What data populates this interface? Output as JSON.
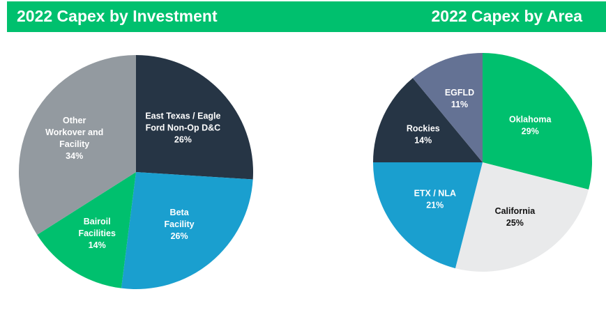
{
  "colors": {
    "green": "#00c06e",
    "navy": "#263545",
    "blue": "#1a9fcf",
    "gray": "#939aa0",
    "lightgray": "#e9eaeb",
    "slate": "#647294",
    "white": "#ffffff",
    "black": "#111111"
  },
  "chart_data": [
    {
      "type": "pie",
      "title": "2022 Capex by Investment",
      "slices": [
        {
          "label": [
            "East Texas / Eagle",
            "Ford Non-Op D&C"
          ],
          "value": 26,
          "pct_label": "26%",
          "color": "#263545",
          "text_color": "#ffffff"
        },
        {
          "label": [
            "Beta",
            "Facility"
          ],
          "value": 26,
          "pct_label": "26%",
          "color": "#1a9fcf",
          "text_color": "#ffffff"
        },
        {
          "label": [
            "Bairoil",
            "Facilities"
          ],
          "value": 14,
          "pct_label": "14%",
          "color": "#00c06e",
          "text_color": "#ffffff"
        },
        {
          "label": [
            "Other",
            "Workover and",
            "Facility"
          ],
          "value": 34,
          "pct_label": "34%",
          "color": "#939aa0",
          "text_color": "#ffffff"
        }
      ]
    },
    {
      "type": "pie",
      "title": "2022 Capex by Area",
      "slices": [
        {
          "label": [
            "Oklahoma"
          ],
          "value": 29,
          "pct_label": "29%",
          "color": "#00c06e",
          "text_color": "#ffffff"
        },
        {
          "label": [
            "California"
          ],
          "value": 25,
          "pct_label": "25%",
          "color": "#e9eaeb",
          "text_color": "#111111"
        },
        {
          "label": [
            "ETX / NLA"
          ],
          "value": 21,
          "pct_label": "21%",
          "color": "#1a9fcf",
          "text_color": "#ffffff"
        },
        {
          "label": [
            "Rockies"
          ],
          "value": 14,
          "pct_label": "14%",
          "color": "#263545",
          "text_color": "#ffffff"
        },
        {
          "label": [
            "EGFLD"
          ],
          "value": 11,
          "pct_label": "11%",
          "color": "#647294",
          "text_color": "#ffffff"
        }
      ]
    }
  ]
}
